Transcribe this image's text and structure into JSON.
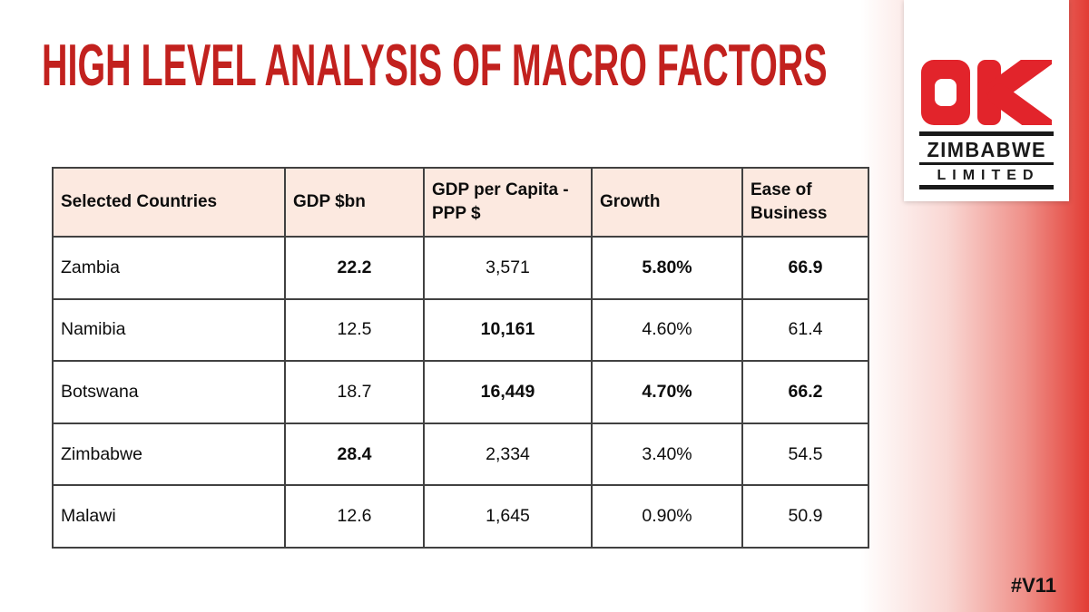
{
  "slide": {
    "title": "HIGH LEVEL ANALYSIS OF MACRO FACTORS",
    "version_tag": "#V11",
    "colors": {
      "title_red": "#c2211e",
      "brand_red": "#e2242b",
      "gradient_red": "#e23c34",
      "table_header_bg": "#fce9e0",
      "table_border": "#414141"
    }
  },
  "logo": {
    "mark": "OK",
    "name_line1": "ZIMBABWE",
    "name_line2": "LIMITED"
  },
  "table": {
    "headers": [
      "Selected Countries",
      "GDP $bn",
      "GDP per Capita - PPP $",
      "Growth",
      "Ease of Business"
    ],
    "rows": [
      {
        "country": "Zambia",
        "cells": [
          {
            "value": "22.2",
            "bold": true
          },
          {
            "value": "3,571",
            "bold": false
          },
          {
            "value": "5.80%",
            "bold": true
          },
          {
            "value": "66.9",
            "bold": true
          }
        ]
      },
      {
        "country": "Namibia",
        "cells": [
          {
            "value": "12.5",
            "bold": false
          },
          {
            "value": "10,161",
            "bold": true
          },
          {
            "value": "4.60%",
            "bold": false
          },
          {
            "value": "61.4",
            "bold": false
          }
        ]
      },
      {
        "country": "Botswana",
        "cells": [
          {
            "value": "18.7",
            "bold": false
          },
          {
            "value": "16,449",
            "bold": true
          },
          {
            "value": "4.70%",
            "bold": true
          },
          {
            "value": "66.2",
            "bold": true
          }
        ]
      },
      {
        "country": "Zimbabwe",
        "cells": [
          {
            "value": "28.4",
            "bold": true
          },
          {
            "value": "2,334",
            "bold": false
          },
          {
            "value": "3.40%",
            "bold": false
          },
          {
            "value": "54.5",
            "bold": false
          }
        ]
      },
      {
        "country": "Malawi",
        "cells": [
          {
            "value": "12.6",
            "bold": false
          },
          {
            "value": "1,645",
            "bold": false
          },
          {
            "value": "0.90%",
            "bold": false
          },
          {
            "value": "50.9",
            "bold": false
          }
        ]
      }
    ]
  }
}
